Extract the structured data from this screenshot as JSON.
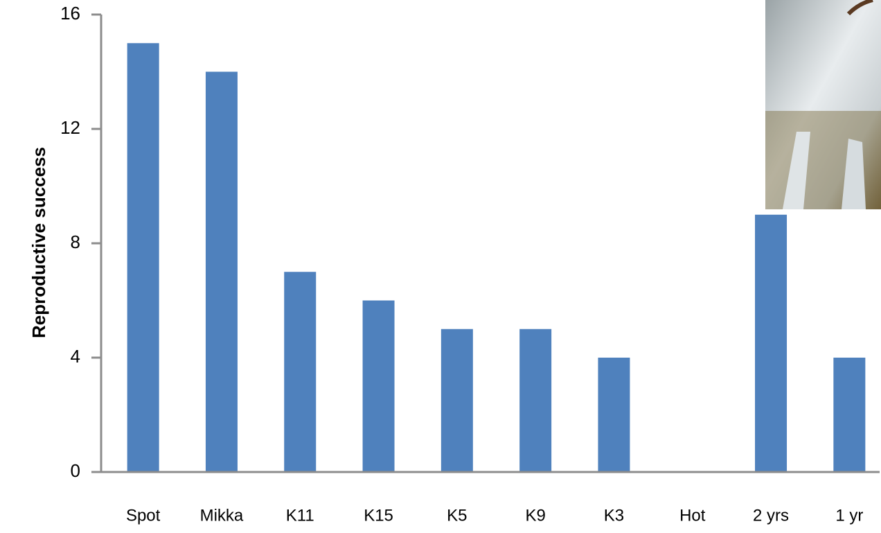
{
  "chart_data": {
    "type": "bar",
    "y_label": "Reproductive success",
    "categories": [
      "Spot",
      "Mikka",
      "K11",
      "K15",
      "K5",
      "K9",
      "K3",
      "Hot",
      "2 yrs",
      "1 yr"
    ],
    "values": [
      15,
      14,
      7,
      6,
      5,
      5,
      4,
      0,
      9,
      4
    ],
    "color": "#4f81bd",
    "ylim": [
      0,
      16
    ],
    "yticks": [
      0,
      4,
      8,
      12,
      16
    ],
    "grid": false
  }
}
